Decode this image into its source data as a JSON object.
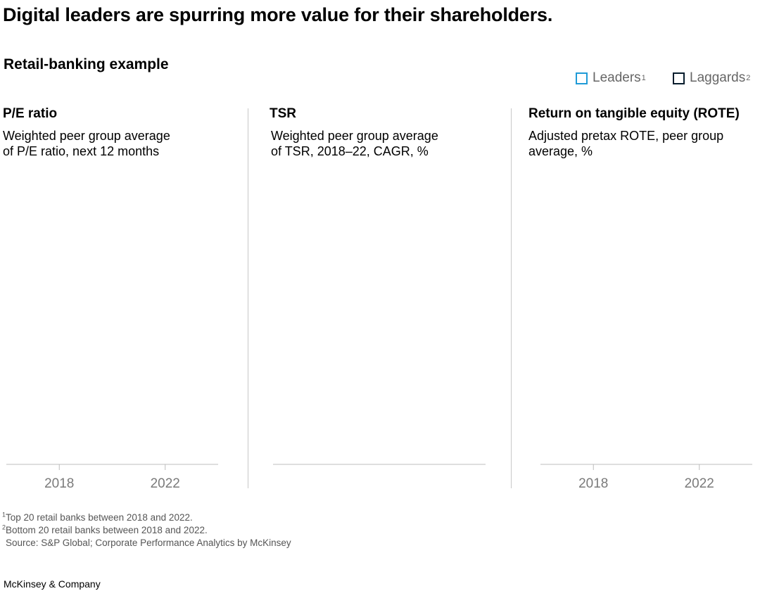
{
  "title": "Digital leaders are spurring more value for their shareholders.",
  "subtitle": "Retail-banking example",
  "legend": {
    "items": [
      {
        "label": "Leaders",
        "sup": "1",
        "color": "#1f9bd7"
      },
      {
        "label": "Laggards",
        "sup": "2",
        "color": "#051c2c"
      }
    ]
  },
  "panels": [
    {
      "title": "P/E ratio",
      "desc_line1": "Weighted peer group average",
      "desc_line2": "of P/E ratio, next 12 months"
    },
    {
      "title": "TSR",
      "desc_line1": "Weighted peer group average",
      "desc_line2": "of TSR, 2018–22, CAGR, %"
    },
    {
      "title": "Return on tangible equity (ROTE)",
      "desc_line1": "Adjusted pretax ROTE, peer group",
      "desc_line2": "average, %"
    }
  ],
  "chart_data": [
    {
      "type": "line",
      "title": "P/E ratio",
      "x": [
        "2018",
        "2022"
      ],
      "series": []
    },
    {
      "type": "bar",
      "title": "TSR",
      "categories": [],
      "series": []
    },
    {
      "type": "line",
      "title": "Return on tangible equity (ROTE)",
      "x": [
        "2018",
        "2022"
      ],
      "series": []
    }
  ],
  "footnotes": {
    "note1_sup": "1",
    "note1": "Top 20 retail banks between 2018 and 2022.",
    "note2_sup": "2",
    "note2": "Bottom 20 retail banks between 2018 and 2022.",
    "source": "Source: S&P Global; Corporate Performance Analytics by McKinsey"
  },
  "brand": "McKinsey & Company"
}
